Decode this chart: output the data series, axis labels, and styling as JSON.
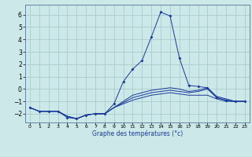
{
  "xlabel": "Graphe des températures (°c)",
  "background_color": "#cce8e8",
  "grid_color": "#aacccc",
  "line_color": "#1a3a9a",
  "xlim_min": -0.5,
  "xlim_max": 23.5,
  "ylim_min": -2.7,
  "ylim_max": 6.8,
  "yticks": [
    -2,
    -1,
    0,
    1,
    2,
    3,
    4,
    5,
    6
  ],
  "xticks": [
    0,
    1,
    2,
    3,
    4,
    5,
    6,
    7,
    8,
    9,
    10,
    11,
    12,
    13,
    14,
    15,
    16,
    17,
    18,
    19,
    20,
    21,
    22,
    23
  ],
  "hours": [
    0,
    1,
    2,
    3,
    4,
    5,
    6,
    7,
    8,
    9,
    10,
    11,
    12,
    13,
    14,
    15,
    16,
    17,
    18,
    19,
    20,
    21,
    22,
    23
  ],
  "series1": [
    -1.5,
    -1.8,
    -1.8,
    -1.8,
    -2.2,
    -2.4,
    -2.1,
    -2.0,
    -2.0,
    -1.5,
    -1.2,
    -0.9,
    -0.7,
    -0.5,
    -0.4,
    -0.3,
    -0.4,
    -0.5,
    -0.5,
    -0.5,
    -0.8,
    -1.0,
    -1.0,
    -1.0
  ],
  "series2": [
    -1.5,
    -1.8,
    -1.8,
    -1.8,
    -2.2,
    -2.4,
    -2.1,
    -2.0,
    -2.0,
    -1.5,
    -1.1,
    -0.7,
    -0.5,
    -0.3,
    -0.2,
    -0.1,
    -0.2,
    -0.3,
    -0.2,
    0.0,
    -0.7,
    -0.9,
    -1.0,
    -1.0
  ],
  "series3": [
    -1.5,
    -1.8,
    -1.8,
    -1.8,
    -2.2,
    -2.4,
    -2.1,
    -2.0,
    -2.0,
    -1.5,
    -1.0,
    -0.5,
    -0.3,
    -0.1,
    0.0,
    0.1,
    0.0,
    -0.2,
    -0.1,
    0.1,
    -0.6,
    -0.8,
    -1.0,
    -1.0
  ],
  "series_main": [
    -1.5,
    -1.8,
    -1.8,
    -1.8,
    -2.3,
    -2.4,
    -2.1,
    -2.0,
    -2.0,
    -1.2,
    0.6,
    1.6,
    2.3,
    4.2,
    6.2,
    5.9,
    2.5,
    0.3,
    0.2,
    0.1,
    -0.7,
    -0.9,
    -1.0,
    -1.0
  ],
  "xlabel_fontsize": 5.5,
  "tick_fontsize_x": 4.5,
  "tick_fontsize_y": 5.5
}
